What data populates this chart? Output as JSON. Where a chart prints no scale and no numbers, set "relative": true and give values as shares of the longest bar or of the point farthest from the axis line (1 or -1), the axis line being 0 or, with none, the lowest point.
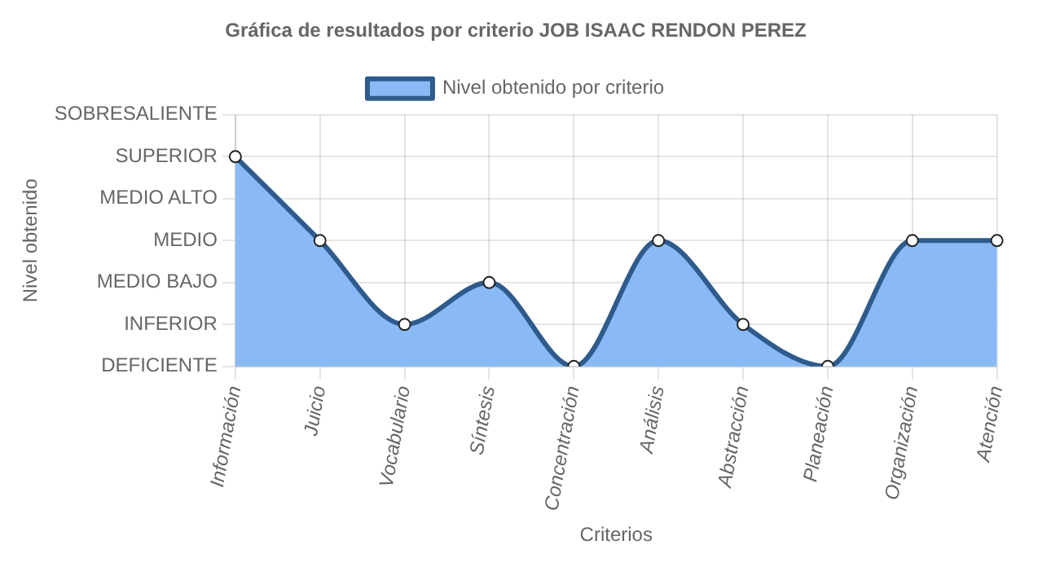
{
  "chart_data": {
    "type": "area",
    "title": "Gráfica de resultados por criterio JOB ISAAC RENDON PEREZ",
    "xlabel": "Criterios",
    "categories": [
      "Información",
      "Juicio",
      "Vocabulario",
      "Síntesis",
      "Concentración",
      "Análisis",
      "Abstracción",
      "Planeación",
      "Organización",
      "Atención"
    ],
    "series": [
      {
        "name": "Nivel obtenido por criterio",
        "color": "#89baf6",
        "values": [
          1,
          0.6,
          0.2,
          0.4,
          0,
          0.6,
          0.2,
          0,
          0.6,
          0.6
        ]
      }
    ],
    "relative": true,
    "annotations": [
      "DEFICIENTE",
      "INFERIOR",
      "MEDIO BAJO",
      "MEDIO",
      "MEDIO ALTO",
      "SUPERIOR",
      "SOBRESALIENTE",
      "Nivel obtenido"
    ],
    "grid": true,
    "legend": "top",
    "marker": "circle",
    "line_style": "solid"
  }
}
